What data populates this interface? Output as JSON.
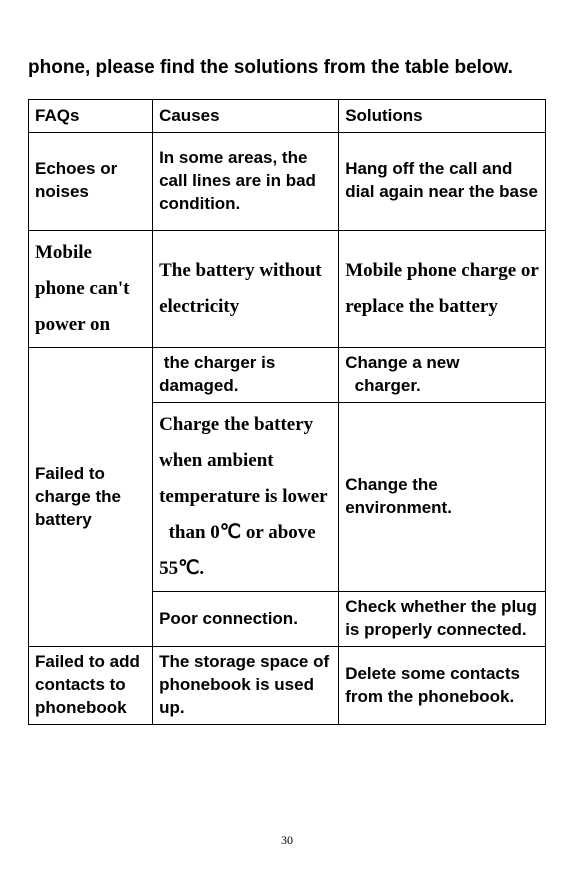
{
  "intro": "phone, please find the solutions from the table below.",
  "headers": {
    "faq": "FAQs",
    "cause": "Causes",
    "sol": "Solutions"
  },
  "rows": {
    "r1": {
      "faq": "Echoes or noises",
      "cause": "In some areas, the call lines are in bad condition.",
      "sol": "Hang off the call and dial again near the base"
    },
    "r2": {
      "faq": "Mobile phone can't power on",
      "cause": "The battery without electricity",
      "sol": "Mobile phone charge or replace the battery"
    },
    "r3": {
      "faq": "Failed to charge the battery",
      "c1": " the charger is damaged.",
      "s1": "Change a new   charger.",
      "c2": "Charge the battery when ambient temperature is lower   than 0℃ or above 55℃.",
      "s2": "Change the environment.",
      "c3": "Poor connection.",
      "s3": "Check whether the plug is properly connected."
    },
    "r4": {
      "faq": "Failed to add contacts to phonebook",
      "cause": "The storage space of phonebook is used up.",
      "sol": "Delete some contacts from the phonebook."
    }
  },
  "pageNumber": "30"
}
